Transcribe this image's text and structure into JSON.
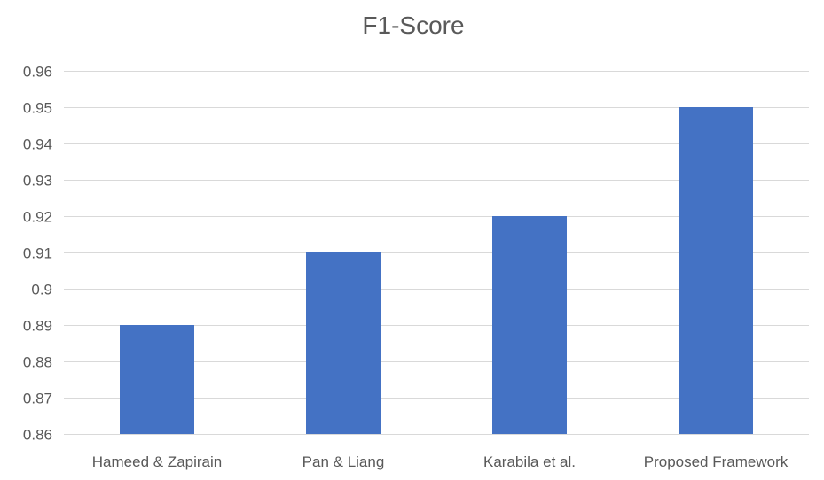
{
  "chart_data": {
    "type": "bar",
    "title": "F1-Score",
    "categories": [
      "Hameed & Zapirain",
      "Pan & Liang",
      "Karabila et al.",
      "Proposed Framework"
    ],
    "values": [
      0.89,
      0.91,
      0.92,
      0.95
    ],
    "ylim": [
      0.86,
      0.96
    ],
    "yticks": [
      "0.86",
      "0.87",
      "0.88",
      "0.89",
      "0.9",
      "0.91",
      "0.92",
      "0.93",
      "0.94",
      "0.95",
      "0.96"
    ],
    "grid": true,
    "bar_color": "#4472c4"
  }
}
